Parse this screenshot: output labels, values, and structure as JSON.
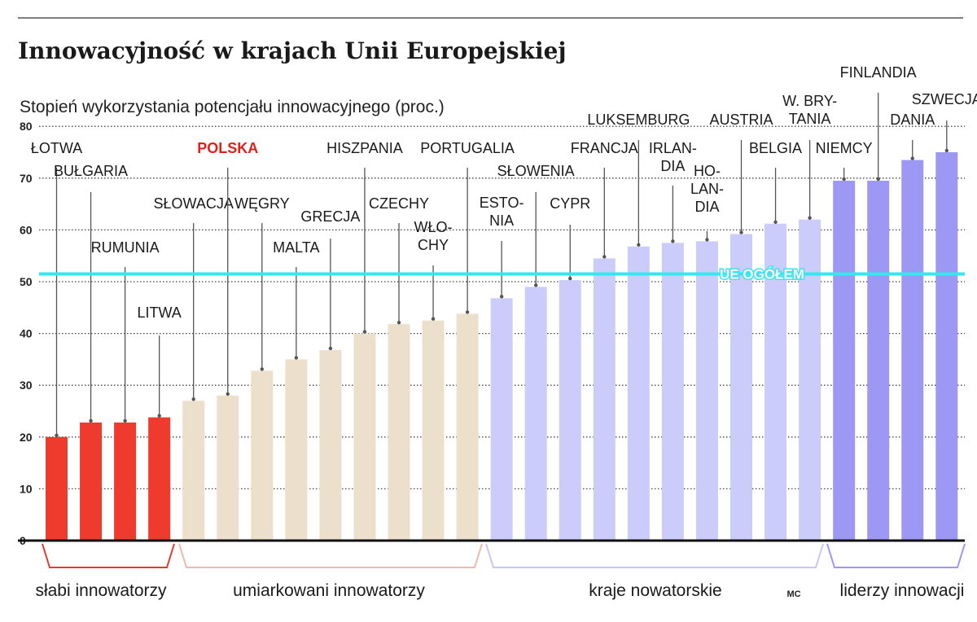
{
  "chart_data": {
    "type": "bar",
    "title": "Innowacyjność w krajach Unii Europejskiej",
    "ylabel": "Stopień wykorzystania potencjału innowacyjnego (proc.)",
    "xlabel": "",
    "ylim": [
      0,
      80
    ],
    "yticks": [
      "0",
      "10",
      "20",
      "30",
      "40",
      "50",
      "60",
      "70",
      "80"
    ],
    "grid": true,
    "categories": [
      "ŁOTWA",
      "BUŁGARIA",
      "RUMUNIA",
      "LITWA",
      "SŁOWACJA",
      "POLSKA",
      "WĘGRY",
      "MALTA",
      "GRECJA",
      "HISZPANIA",
      "CZECHY",
      "WŁOCHY",
      "PORTUGALIA",
      "ESTONIA",
      "SŁOWENIA",
      "CYPR",
      "FRANCJA",
      "LUKSEMBURG",
      "IRLANDIA",
      "HOLANDIA",
      "AUSTRIA",
      "BELGIA",
      "W. BRYTANIA",
      "NIEMCY",
      "FINLANDIA",
      "DANIA",
      "SZWECJA"
    ],
    "country_labels": [
      [
        "ŁOTWA"
      ],
      [
        "BUŁGARIA"
      ],
      [
        "RUMUNIA"
      ],
      [
        "LITWA"
      ],
      [
        "SŁOWACJA"
      ],
      [
        "POLSKA"
      ],
      [
        "WĘGRY"
      ],
      [
        "MALTA"
      ],
      [
        "GRECJA"
      ],
      [
        "HISZPANIA"
      ],
      [
        "CZECHY"
      ],
      [
        "WŁO-",
        "CHY"
      ],
      [
        "PORTUGALIA"
      ],
      [
        "ESTO-",
        "NIA"
      ],
      [
        "SŁOWENIA"
      ],
      [
        "CYPR"
      ],
      [
        "FRANCJA"
      ],
      [
        "LUKSEMBURG"
      ],
      [
        "IRLAN-",
        "DIA"
      ],
      [
        "HO-",
        "LAN-",
        "DIA"
      ],
      [
        "AUSTRIA"
      ],
      [
        "BELGIA"
      ],
      [
        "W. BRY-",
        "TANIA"
      ],
      [
        "NIEMCY"
      ],
      [
        "FINLANDIA"
      ],
      [
        "DANIA"
      ],
      [
        "SZWECJA"
      ]
    ],
    "values": [
      20,
      22.8,
      22.8,
      23.8,
      27,
      28,
      32.8,
      35,
      36.8,
      40,
      41.8,
      42.5,
      43.8,
      46.8,
      49,
      50.3,
      54.5,
      56.8,
      57.5,
      57.8,
      59.2,
      61.2,
      62,
      69.5,
      69.5,
      73.5,
      75
    ],
    "groups": [
      {
        "name": "słabi innowatorzy",
        "color": "#ef3a2e"
      },
      {
        "name": "umiarkowani innowatorzy",
        "color": "#ecdfcb"
      },
      {
        "name": "kraje nowatorskie",
        "color": "#ccccfa"
      },
      {
        "name": "liderzy innowacji",
        "color": "#9d98f3"
      }
    ],
    "group_of_bar": [
      0,
      0,
      0,
      0,
      1,
      1,
      1,
      1,
      1,
      1,
      1,
      1,
      1,
      2,
      2,
      2,
      2,
      2,
      2,
      2,
      2,
      2,
      2,
      3,
      3,
      3,
      3
    ],
    "highlight_label": "POLSKA",
    "highlight_color": "#e0201a",
    "reference_line": {
      "label": "UE OGÓŁEM",
      "value": 51.5,
      "color": "#38e6ee"
    },
    "credit": "MC"
  }
}
